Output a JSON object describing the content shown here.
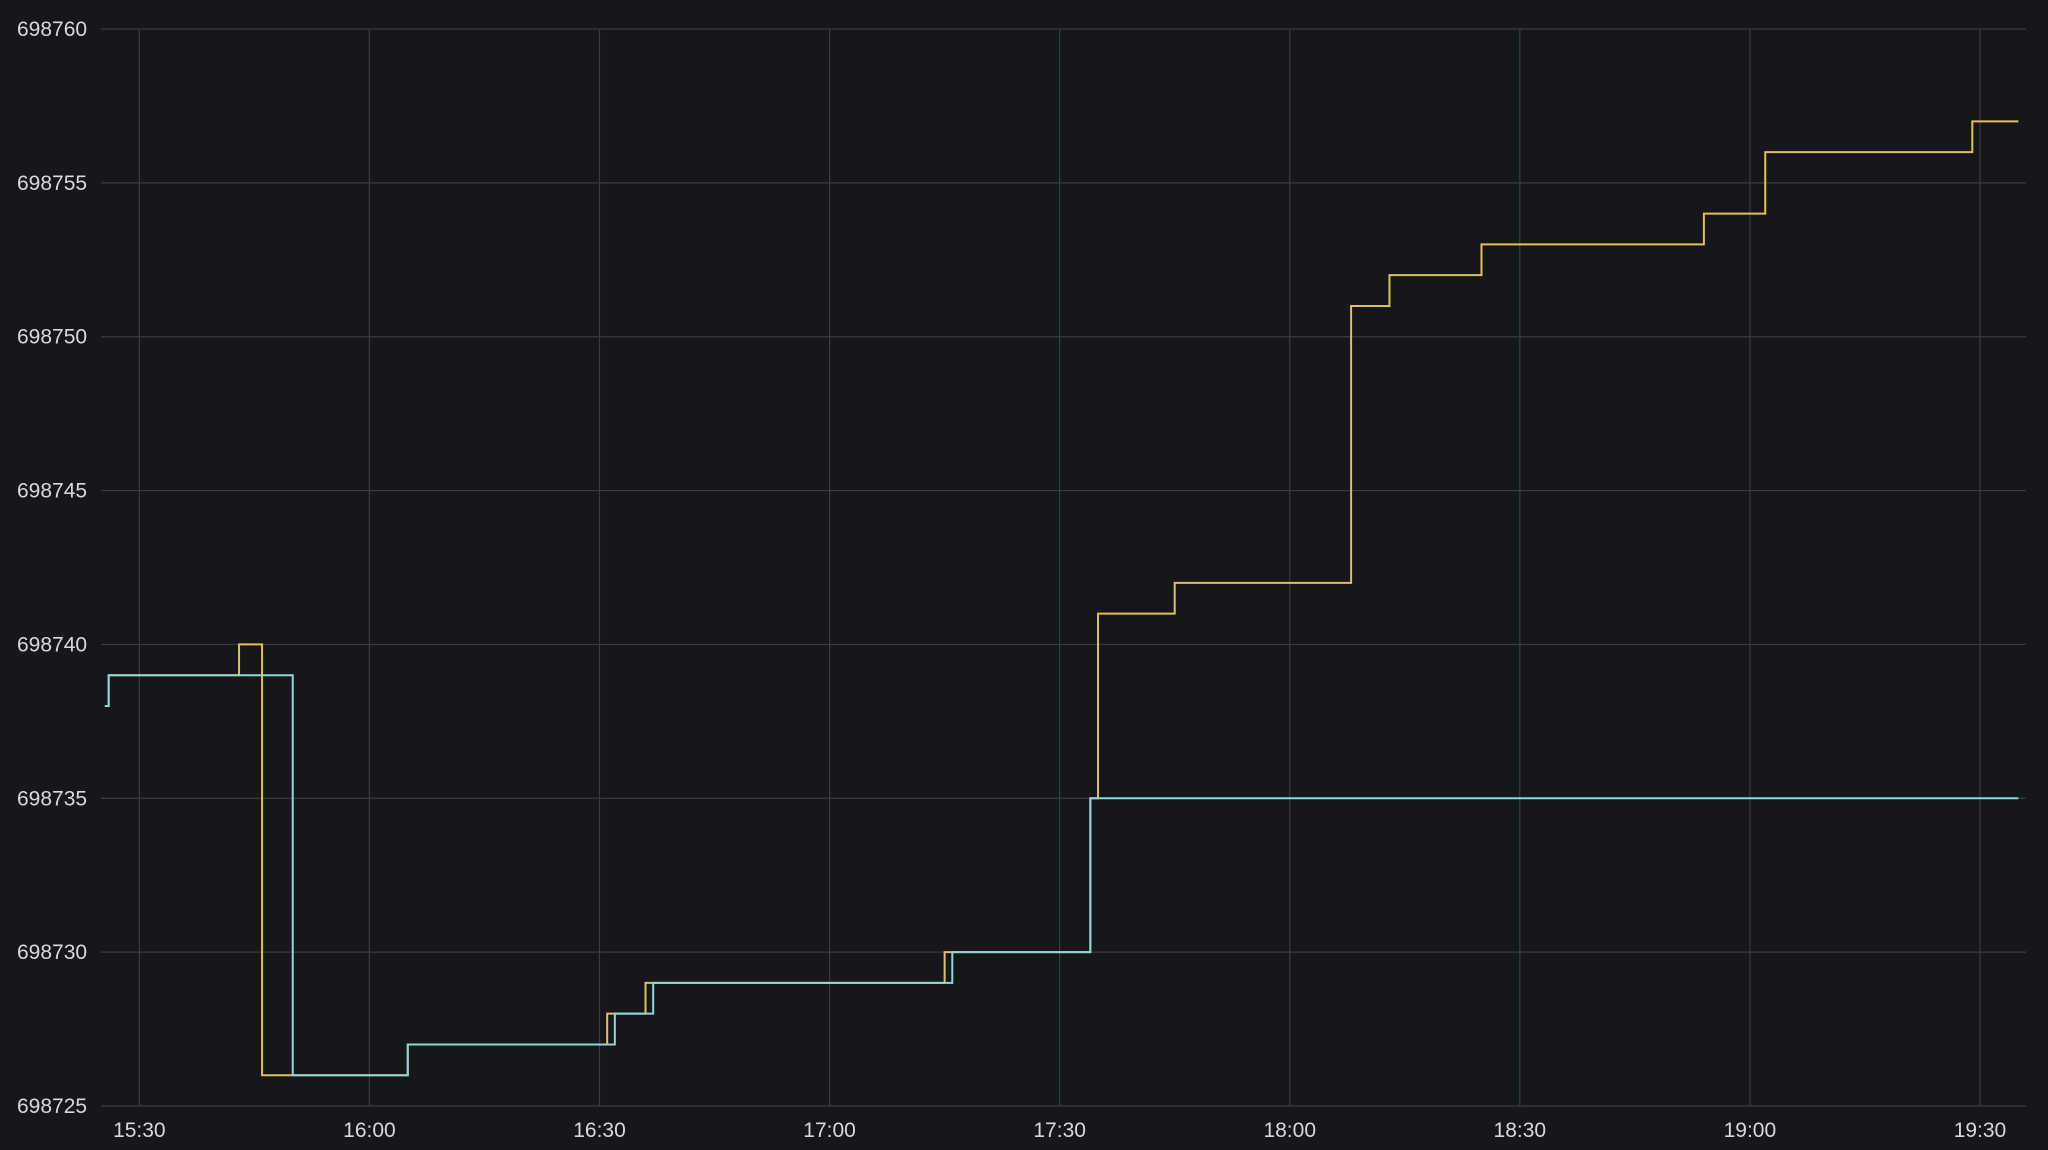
{
  "colors": {
    "background": "#16171a",
    "grid": "#3a3c41",
    "tick_text": "#d8d9da"
  },
  "chart_data": {
    "type": "line",
    "step": "after",
    "title": "",
    "xlabel": "",
    "ylabel": "",
    "legend": "none",
    "grid": true,
    "xlim": [
      "15:25",
      "19:36"
    ],
    "ylim": [
      698725,
      698760
    ],
    "x_ticks": [
      "15:30",
      "16:00",
      "16:30",
      "17:00",
      "17:30",
      "18:00",
      "18:30",
      "19:00",
      "19:30"
    ],
    "y_ticks": [
      698725,
      698730,
      698735,
      698740,
      698745,
      698750,
      698755,
      698760
    ],
    "series": [
      {
        "color": "#e0c060",
        "points": [
          [
            "15:25:30",
            698738
          ],
          [
            "15:26",
            698739
          ],
          [
            "15:43",
            698740
          ],
          [
            "15:46",
            698726
          ],
          [
            "15:47",
            698726
          ],
          [
            "16:05",
            698727
          ],
          [
            "16:31",
            698728
          ],
          [
            "16:36",
            698729
          ],
          [
            "17:15",
            698730
          ],
          [
            "17:34",
            698735
          ],
          [
            "17:35",
            698741
          ],
          [
            "17:45",
            698742
          ],
          [
            "18:08",
            698751
          ],
          [
            "18:13",
            698752
          ],
          [
            "18:25",
            698753
          ],
          [
            "18:54",
            698754
          ],
          [
            "19:02",
            698756
          ],
          [
            "19:29",
            698757
          ],
          [
            "19:35",
            698757
          ]
        ]
      },
      {
        "color": "#8fd6d9",
        "points": [
          [
            "15:25:30",
            698738
          ],
          [
            "15:26",
            698739
          ],
          [
            "15:50",
            698726
          ],
          [
            "16:05",
            698727
          ],
          [
            "16:32",
            698728
          ],
          [
            "16:37",
            698729
          ],
          [
            "17:16",
            698730
          ],
          [
            "17:34",
            698735
          ],
          [
            "19:35",
            698735
          ]
        ]
      }
    ]
  }
}
